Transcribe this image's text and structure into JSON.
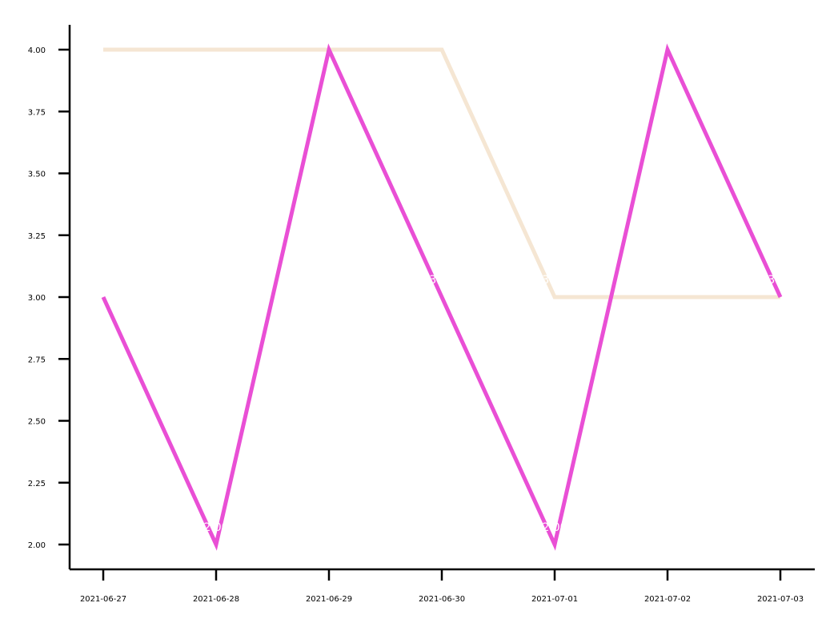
{
  "chart_data": {
    "type": "line",
    "title": "",
    "xlabel": "",
    "ylabel": "",
    "x": [
      "2021-06-27",
      "2021-06-28",
      "2021-06-29",
      "2021-06-30",
      "2021-07-01",
      "2021-07-02",
      "2021-07-03"
    ],
    "y_ticks": [
      "2.00",
      "2.25",
      "2.50",
      "2.75",
      "3.00",
      "3.25",
      "3.50",
      "3.75",
      "4.00"
    ],
    "ylim": [
      1.9,
      4.1
    ],
    "grid": false,
    "legend": "none",
    "series": [
      {
        "values": [
          4,
          4,
          4,
          4,
          3,
          3,
          3
        ],
        "color": "#f5e6d3"
      },
      {
        "values": [
          3,
          2,
          4,
          3,
          2,
          4,
          3
        ],
        "color": "#e94fd5"
      }
    ],
    "data_labels": [
      {
        "x": "2021-06-28",
        "y": 2,
        "text": "2.00"
      },
      {
        "x": "2021-06-30",
        "y": 3,
        "text": "3.00"
      },
      {
        "x": "2021-07-01",
        "y": 3,
        "text": "3.00"
      },
      {
        "x": "2021-07-01",
        "y": 2,
        "text": "2.00"
      },
      {
        "x": "2021-07-03",
        "y": 3,
        "text": "3.00"
      }
    ]
  }
}
